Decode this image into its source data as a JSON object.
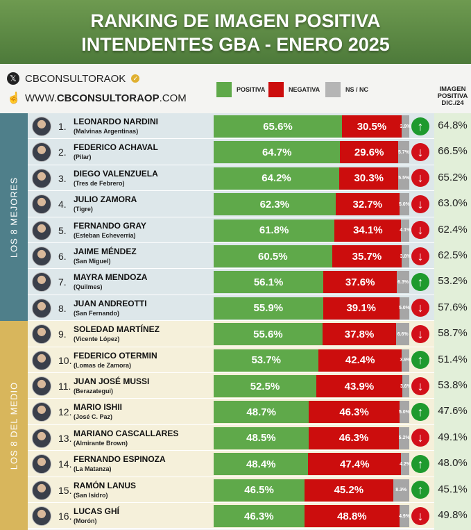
{
  "title": {
    "line1": "RANKING DE IMAGEN POSITIVA",
    "line2": "INTENDENTES GBA - ENERO 2025"
  },
  "header": {
    "account": "CBCONSULTORAOK",
    "web_prefix": "WWW.",
    "web_bold": "CBCONSULTORAOP",
    "web_suffix": ".COM",
    "dic_header": "IMAGEN POSITIVA DIC./24"
  },
  "groups": {
    "top": "LOS 8 MEJORES",
    "middle": "LOS 8 DEL MEDIO"
  },
  "colors": {
    "positiva": "#5fa94a",
    "negativa": "#cc0d0d",
    "nsnc": "#a6a6a6",
    "up": "#1e9a2e",
    "down": "#d2101a"
  },
  "chart_data": {
    "type": "bar",
    "stacked": true,
    "orientation": "horizontal",
    "title": "RANKING DE IMAGEN POSITIVA INTENDENTES GBA - ENERO 2025",
    "legend": [
      "POSITIVA",
      "NEGATIVA",
      "NS / NC"
    ],
    "legend_position": "top",
    "xlim": [
      0,
      100
    ],
    "rows": [
      {
        "rank": "1.",
        "name": "LEONARDO NARDINI",
        "municipio": "(Malvinas Argentinas)",
        "pos": 65.6,
        "neg": 30.5,
        "ns": 3.9,
        "trend": "up",
        "dic": 64.8
      },
      {
        "rank": "2.",
        "name": "FEDERICO ACHAVAL",
        "municipio": "(Pilar)",
        "pos": 64.7,
        "neg": 29.6,
        "ns": 5.7,
        "trend": "down",
        "dic": 66.5
      },
      {
        "rank": "3.",
        "name": "DIEGO VALENZUELA",
        "municipio": "(Tres de Febrero)",
        "pos": 64.2,
        "neg": 30.3,
        "ns": 5.5,
        "trend": "down",
        "dic": 65.2
      },
      {
        "rank": "4.",
        "name": "JULIO ZAMORA",
        "municipio": "(Tigre)",
        "pos": 62.3,
        "neg": 32.7,
        "ns": 5.0,
        "trend": "down",
        "dic": 63.0
      },
      {
        "rank": "5.",
        "name": "FERNANDO GRAY",
        "municipio": "(Esteban Echeverría)",
        "pos": 61.8,
        "neg": 34.1,
        "ns": 4.1,
        "trend": "down",
        "dic": 62.4
      },
      {
        "rank": "6.",
        "name": "JAIME MÉNDEZ",
        "municipio": "(San Miguel)",
        "pos": 60.5,
        "neg": 35.7,
        "ns": 3.8,
        "trend": "down",
        "dic": 62.5
      },
      {
        "rank": "7.",
        "name": "MAYRA MENDOZA",
        "municipio": "(Quilmes)",
        "pos": 56.1,
        "neg": 37.6,
        "ns": 6.3,
        "trend": "up",
        "dic": 53.2
      },
      {
        "rank": "8.",
        "name": "JUAN ANDREOTTI",
        "municipio": "(San Fernando)",
        "pos": 55.9,
        "neg": 39.1,
        "ns": 5.0,
        "trend": "down",
        "dic": 57.6
      },
      {
        "rank": "9.",
        "name": "SOLEDAD MARTÍNEZ",
        "municipio": "(Vicente López)",
        "pos": 55.6,
        "neg": 37.8,
        "ns": 6.6,
        "trend": "down",
        "dic": 58.7
      },
      {
        "rank": "10.",
        "name": "FEDERICO OTERMIN",
        "municipio": "(Lomas de Zamora)",
        "pos": 53.7,
        "neg": 42.4,
        "ns": 3.9,
        "trend": "up",
        "dic": 51.4
      },
      {
        "rank": "11.",
        "name": "JUAN JOSÉ MUSSI",
        "municipio": "(Berazategui)",
        "pos": 52.5,
        "neg": 43.9,
        "ns": 3.6,
        "trend": "down",
        "dic": 53.8
      },
      {
        "rank": "12.",
        "name": "MARIO ISHII",
        "municipio": "(José C. Paz)",
        "pos": 48.7,
        "neg": 46.3,
        "ns": 5.0,
        "trend": "up",
        "dic": 47.6
      },
      {
        "rank": "13.",
        "name": "MARIANO CASCALLARES",
        "municipio": "(Almirante Brown)",
        "pos": 48.5,
        "neg": 46.3,
        "ns": 5.2,
        "trend": "down",
        "dic": 49.1
      },
      {
        "rank": "14.",
        "name": "FERNANDO ESPINOZA",
        "municipio": "(La Matanza)",
        "pos": 48.4,
        "neg": 47.4,
        "ns": 4.2,
        "trend": "up",
        "dic": 48.0
      },
      {
        "rank": "15.",
        "name": "RAMÓN LANUS",
        "municipio": "(San Isidro)",
        "pos": 46.5,
        "neg": 45.2,
        "ns": 8.3,
        "trend": "up",
        "dic": 45.1
      },
      {
        "rank": "16.",
        "name": "LUCAS GHÍ",
        "municipio": "(Morón)",
        "pos": 46.3,
        "neg": 48.8,
        "ns": 4.9,
        "trend": "down",
        "dic": 49.8
      }
    ]
  }
}
